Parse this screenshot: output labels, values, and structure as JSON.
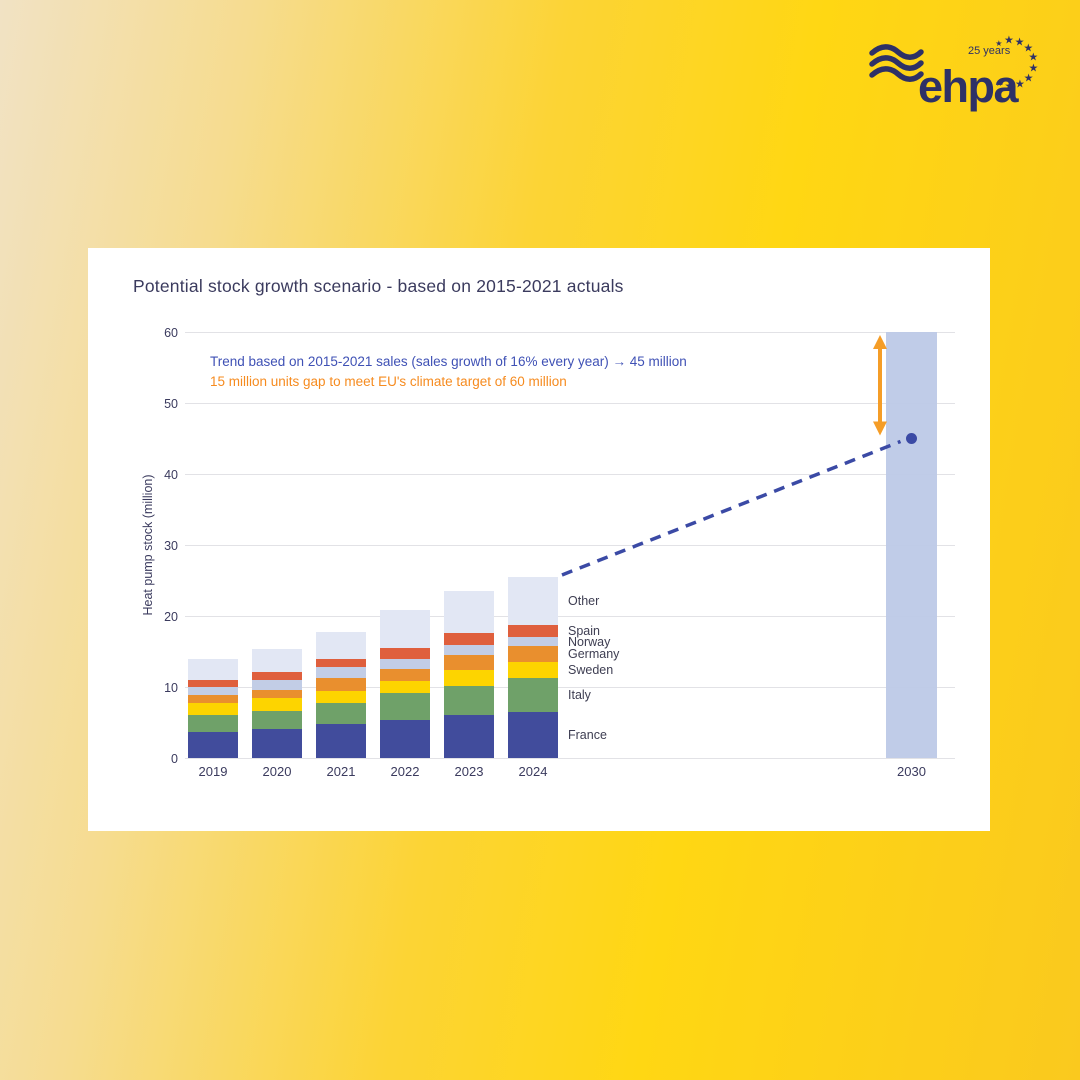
{
  "logo": {
    "brand": "ehpa",
    "anniversary": "25 years"
  },
  "chart_data": {
    "type": "bar",
    "variant": "stacked bars with projection",
    "title": "Potential stock growth scenario - based on 2015-2021 actuals",
    "ylabel": "Heat pump stock (million)",
    "xlabel": "",
    "ylim": [
      0,
      60
    ],
    "ytick_step": 10,
    "grid": "horizontal",
    "categories": [
      "2019",
      "2020",
      "2021",
      "2022",
      "2023",
      "2024"
    ],
    "series": [
      {
        "name": "France",
        "color": "#414c9c",
        "values": [
          3.6,
          4.1,
          4.8,
          5.3,
          6.1,
          6.5
        ]
      },
      {
        "name": "Italy",
        "color": "#6fa169",
        "values": [
          2.4,
          2.5,
          2.9,
          3.8,
          4.1,
          4.7
        ]
      },
      {
        "name": "Sweden",
        "color": "#fdd400",
        "values": [
          1.8,
          1.8,
          1.7,
          1.7,
          2.2,
          2.3
        ]
      },
      {
        "name": "Germany",
        "color": "#e98f2e",
        "values": [
          1.1,
          1.2,
          1.8,
          1.8,
          2.1,
          2.3
        ]
      },
      {
        "name": "Norway",
        "color": "#c2cde6",
        "values": [
          1.1,
          1.4,
          1.6,
          1.3,
          1.4,
          1.2
        ]
      },
      {
        "name": "Spain",
        "color": "#df5f3d",
        "values": [
          1.0,
          1.1,
          1.2,
          1.6,
          1.7,
          1.8
        ]
      },
      {
        "name": "Other",
        "color": "#e2e7f4",
        "values": [
          3.0,
          3.3,
          3.7,
          5.3,
          5.9,
          6.7
        ]
      }
    ],
    "totals": [
      14.0,
      15.4,
      17.7,
      20.8,
      23.5,
      25.5
    ],
    "legend_position": "right of 2024 bar, inline with segments",
    "legend": [
      "Other",
      "Spain",
      "Norway",
      "Germany",
      "Sweden",
      "Italy",
      "France"
    ],
    "projection": {
      "category": "2030",
      "target_bar_value": 60,
      "target_bar_color": "#bdc9e7",
      "trend_point_value": 45,
      "trend_color": "#3b4aa5",
      "trend_line_style": "dashed",
      "gap_arrow": {
        "from": 45,
        "to": 60,
        "color": "#f59d27"
      }
    },
    "annotations": [
      {
        "text": "Trend based on 2015-2021 sales (sales growth of 16% every year) → 45 million",
        "color": "#3f51b5"
      },
      {
        "text": "15 million units gap to meet EU's climate target of 60 million",
        "color": "#f68b1f"
      }
    ]
  }
}
